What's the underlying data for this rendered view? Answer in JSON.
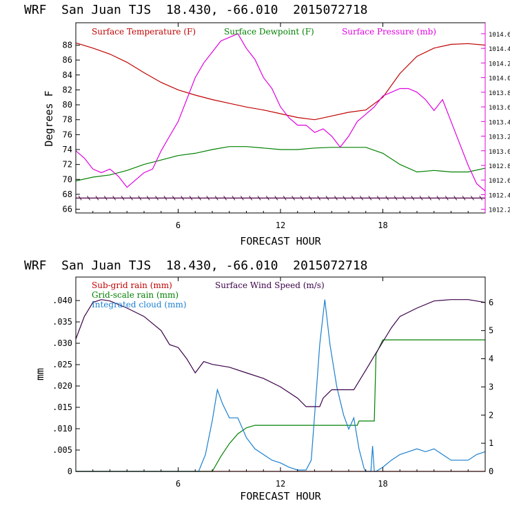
{
  "chart_data": [
    {
      "type": "line",
      "title": "WRF  San Juan TJS  18.430, -66.010  2015072718",
      "xlabel": "FORECAST HOUR",
      "ylabel": "Degrees F",
      "xlim": [
        0,
        24
      ],
      "xticks": [
        6,
        12,
        18
      ],
      "ylim": [
        65.5,
        91
      ],
      "yticks": [
        66,
        68,
        70,
        72,
        74,
        76,
        78,
        80,
        82,
        84,
        86,
        88
      ],
      "y2lim": [
        1012.15,
        1014.75
      ],
      "y2ticks": [
        1012.2,
        1012.4,
        1012.6,
        1012.8,
        1013.0,
        1013.2,
        1013.4,
        1013.6,
        1013.8,
        1014.0,
        1014.2,
        1014.4,
        1014.6
      ],
      "grid": false,
      "legend_position": "top",
      "series": [
        {
          "name": "Surface Temperature (F)",
          "color": "#c00000",
          "axis": "left",
          "x": [
            0,
            1,
            2,
            3,
            4,
            5,
            6,
            7,
            8,
            9,
            10,
            11,
            12,
            13,
            14,
            15,
            16,
            17,
            18,
            19,
            20,
            21,
            22,
            23,
            24
          ],
          "y": [
            88.3,
            87.6,
            86.8,
            85.7,
            84.3,
            83.0,
            82.0,
            81.3,
            80.7,
            80.2,
            79.7,
            79.3,
            78.8,
            78.3,
            78.0,
            78.5,
            79.0,
            79.3,
            81.0,
            84.2,
            86.5,
            87.6,
            88.1,
            88.2,
            88.0
          ]
        },
        {
          "name": "Surface Dewpoint (F)",
          "color": "#008000",
          "axis": "left",
          "x": [
            0,
            1,
            2,
            3,
            4,
            5,
            6,
            7,
            8,
            9,
            10,
            11,
            12,
            13,
            14,
            15,
            16,
            17,
            18,
            19,
            20,
            21,
            22,
            23,
            24
          ],
          "y": [
            69.8,
            70.3,
            70.6,
            71.2,
            72.0,
            72.6,
            73.2,
            73.5,
            74.0,
            74.4,
            74.4,
            74.2,
            74.0,
            74.0,
            74.2,
            74.3,
            74.3,
            74.3,
            73.5,
            72.0,
            71.0,
            71.2,
            71.0,
            71.0,
            71.5
          ]
        },
        {
          "name": "Surface Pressure (mb)",
          "color": "#e000e0",
          "axis": "right",
          "x": [
            0,
            0.5,
            1,
            1.5,
            2,
            2.5,
            3,
            3.5,
            4,
            4.5,
            5,
            5.5,
            6,
            6.5,
            7,
            7.5,
            8,
            8.5,
            9,
            9.5,
            10,
            10.5,
            11,
            11.5,
            12,
            12.5,
            13,
            13.5,
            14,
            14.5,
            15,
            15.5,
            16,
            16.5,
            17,
            17.5,
            18,
            18.5,
            19,
            19.5,
            20,
            20.5,
            21,
            21.5,
            22,
            22.5,
            23,
            23.5,
            24
          ],
          "y": [
            1013.0,
            1012.9,
            1012.75,
            1012.7,
            1012.75,
            1012.65,
            1012.5,
            1012.6,
            1012.7,
            1012.75,
            1013.0,
            1013.2,
            1013.4,
            1013.7,
            1014.0,
            1014.2,
            1014.35,
            1014.5,
            1014.55,
            1014.6,
            1014.4,
            1014.25,
            1014.0,
            1013.85,
            1013.6,
            1013.45,
            1013.35,
            1013.35,
            1013.25,
            1013.3,
            1013.2,
            1013.05,
            1013.2,
            1013.4,
            1013.5,
            1013.6,
            1013.75,
            1013.8,
            1013.85,
            1013.85,
            1013.8,
            1013.7,
            1013.55,
            1013.7,
            1013.4,
            1013.1,
            1012.8,
            1012.55,
            1012.45
          ]
        },
        {
          "name": "Wind barbs",
          "color": "#4a0040",
          "axis": "left",
          "x": [
            0,
            24
          ],
          "y": [
            67.5,
            67.5
          ]
        }
      ]
    },
    {
      "type": "line",
      "title": "WRF  San Juan TJS  18.430, -66.010  2015072718",
      "xlabel": "FORECAST HOUR",
      "ylabel": "mm",
      "xlim": [
        0,
        24
      ],
      "xticks": [
        6,
        12,
        18
      ],
      "ylim": [
        0,
        0.0455
      ],
      "yticks": [
        0,
        0.005,
        0.01,
        0.015,
        0.02,
        0.025,
        0.03,
        0.035,
        0.04
      ],
      "ytick_labels": [
        "0",
        ".005",
        ".010",
        ".015",
        ".020",
        ".025",
        ".030",
        ".035",
        ".040"
      ],
      "y2lim": [
        0,
        6.9
      ],
      "y2ticks": [
        0,
        1,
        2,
        3,
        4,
        5,
        6
      ],
      "grid": false,
      "legend_position": "top-left",
      "series": [
        {
          "name": "Sub-grid rain (mm)",
          "color": "#c00000",
          "axis": "left",
          "x": [
            0,
            24
          ],
          "y": [
            0,
            0
          ]
        },
        {
          "name": "Grid-scale rain (mm)",
          "color": "#008000",
          "axis": "left",
          "x": [
            0,
            8.0,
            8.5,
            9.0,
            9.5,
            10.0,
            10.5,
            12,
            14,
            16.5,
            16.6,
            17.5,
            17.6,
            18.0,
            24
          ],
          "y": [
            0,
            0,
            0.0035,
            0.0065,
            0.0088,
            0.0102,
            0.0108,
            0.0108,
            0.0108,
            0.0108,
            0.0118,
            0.0118,
            0.0275,
            0.0308,
            0.0308
          ]
        },
        {
          "name": "Integrated cloud (mm)",
          "color": "#1a7fd0",
          "axis": "right",
          "x": [
            0,
            7.2,
            7.6,
            8.0,
            8.3,
            8.6,
            9.0,
            9.5,
            10,
            10.5,
            11,
            11.5,
            12,
            12.5,
            13,
            13.5,
            13.8,
            14.0,
            14.3,
            14.6,
            14.9,
            15.3,
            15.7,
            16.0,
            16.3,
            16.6,
            16.9,
            17.0,
            17.3,
            17.4,
            17.5,
            17.6,
            18.0,
            18.5,
            19,
            19.5,
            20,
            20.5,
            21,
            21.5,
            22,
            22.5,
            23,
            23.5,
            24
          ],
          "y": [
            0,
            0,
            0.6,
            1.8,
            2.9,
            2.4,
            1.9,
            1.9,
            1.2,
            0.8,
            0.6,
            0.4,
            0.3,
            0.15,
            0.05,
            0.05,
            0.4,
            2.0,
            4.5,
            6.1,
            4.5,
            3.0,
            2.0,
            1.5,
            1.9,
            0.8,
            0.1,
            0,
            0,
            0.9,
            0,
            0,
            0.15,
            0.4,
            0.6,
            0.7,
            0.8,
            0.7,
            0.8,
            0.6,
            0.4,
            0.4,
            0.4,
            0.6,
            0.7
          ]
        },
        {
          "name": "Surface Wind Speed (m/s)",
          "color": "#3a0048",
          "axis": "right",
          "x": [
            0,
            0.5,
            1,
            1.5,
            2,
            3,
            4,
            5,
            5.5,
            6,
            6.5,
            7,
            7.5,
            8,
            9,
            10,
            11,
            12,
            13,
            13.5,
            14,
            14.3,
            14.5,
            15,
            16,
            16.3,
            17,
            17.5,
            18,
            18.5,
            19,
            20,
            21,
            22,
            23,
            24
          ],
          "y": [
            4.7,
            5.5,
            6.0,
            6.1,
            6.05,
            5.8,
            5.5,
            5.0,
            4.5,
            4.4,
            4.0,
            3.5,
            3.9,
            3.8,
            3.7,
            3.5,
            3.3,
            3.0,
            2.6,
            2.3,
            2.3,
            2.3,
            2.6,
            2.9,
            2.9,
            2.9,
            3.6,
            4.1,
            4.6,
            5.1,
            5.5,
            5.8,
            6.05,
            6.1,
            6.1,
            6.0
          ]
        }
      ]
    }
  ]
}
